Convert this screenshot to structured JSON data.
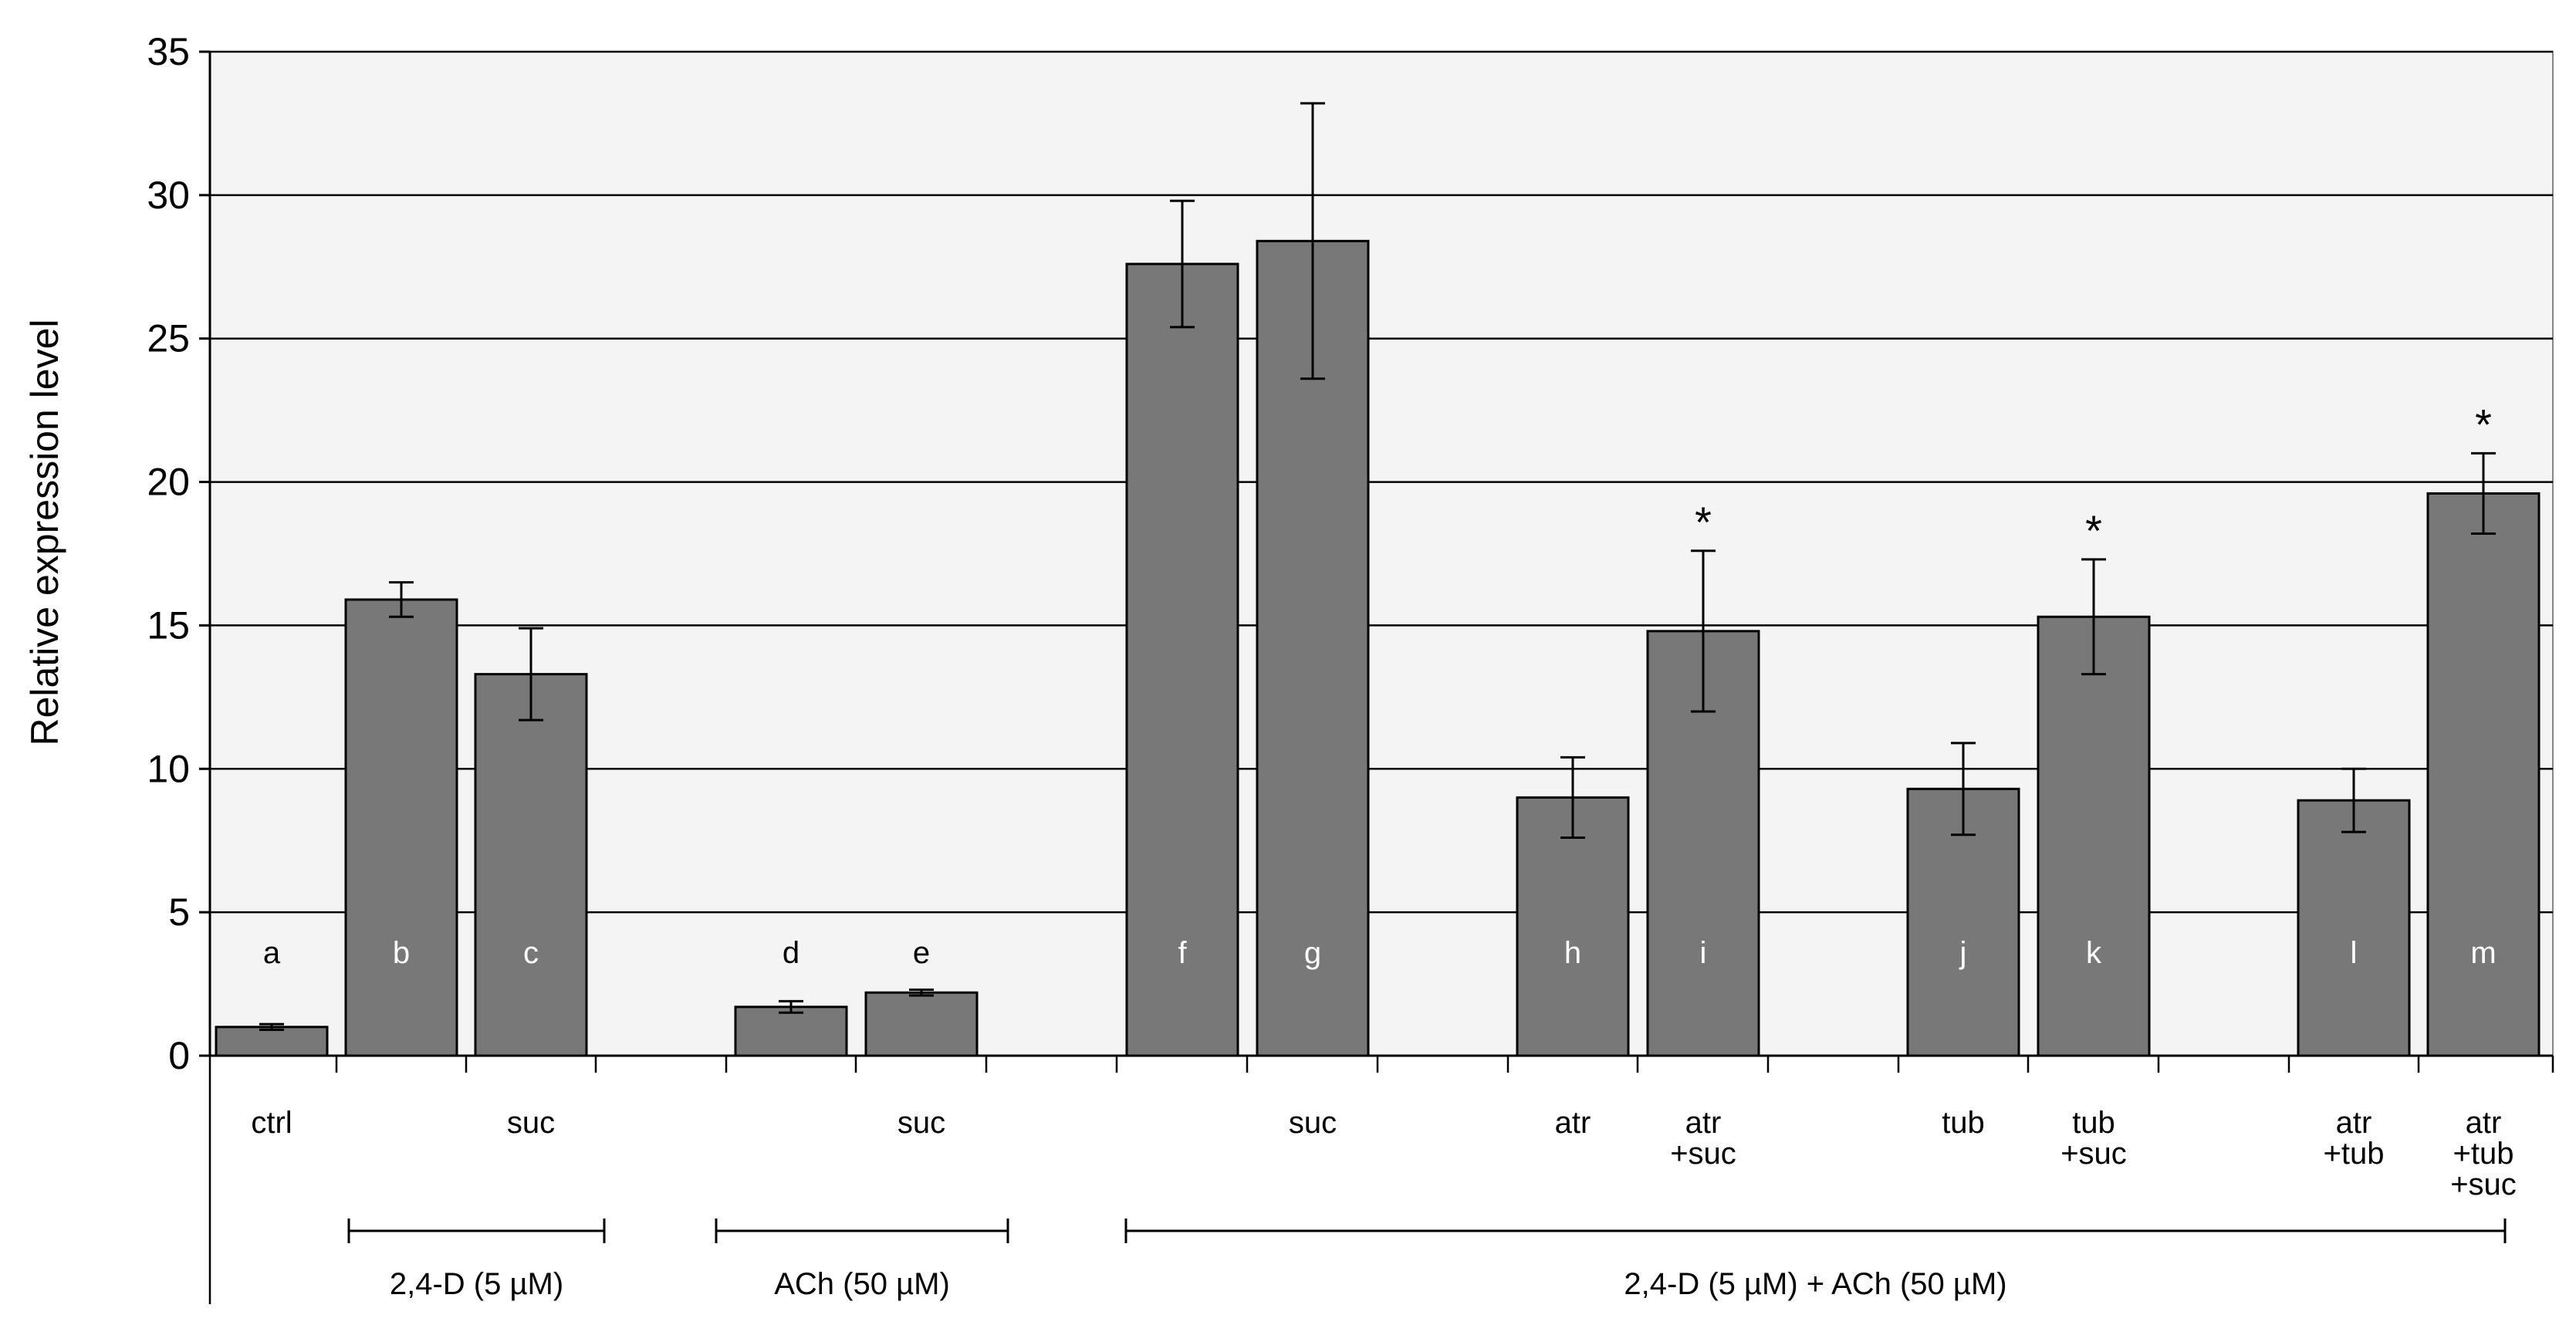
{
  "chart_data": {
    "type": "bar",
    "title": "",
    "xlabel": "",
    "ylabel": "Relative expression level",
    "ylim": [
      0,
      35
    ],
    "yticks": [
      0,
      5,
      10,
      15,
      20,
      25,
      30,
      35
    ],
    "grid": true,
    "legend": "none",
    "colors": {
      "bar": "#787878",
      "plot_bg": "#f4f4f4",
      "grid": "#000000"
    },
    "bars": [
      {
        "letter": "a",
        "value": 1.0,
        "err": 0.1,
        "cond": "ctrl",
        "star": false
      },
      {
        "letter": "b",
        "value": 15.9,
        "err": 0.6,
        "cond": "",
        "star": false
      },
      {
        "letter": "c",
        "value": 13.3,
        "err": 1.6,
        "cond": "suc",
        "star": false
      },
      {
        "letter": "d",
        "value": 1.7,
        "err": 0.2,
        "cond": "",
        "star": false
      },
      {
        "letter": "e",
        "value": 2.2,
        "err": 0.1,
        "cond": "suc",
        "star": false
      },
      {
        "letter": "f",
        "value": 27.6,
        "err": 2.2,
        "cond": "",
        "star": false
      },
      {
        "letter": "g",
        "value": 28.4,
        "err": 4.8,
        "cond": "suc",
        "star": false
      },
      {
        "letter": "h",
        "value": 9.0,
        "err": 1.4,
        "cond": "atr",
        "star": false
      },
      {
        "letter": "i",
        "value": 14.8,
        "err": 2.8,
        "cond": "atr\n+suc",
        "star": true
      },
      {
        "letter": "j",
        "value": 9.3,
        "err": 1.6,
        "cond": "tub",
        "star": false
      },
      {
        "letter": "k",
        "value": 15.3,
        "err": 2.0,
        "cond": "tub\n+suc",
        "star": true
      },
      {
        "letter": "l",
        "value": 8.9,
        "err": 1.1,
        "cond": "atr\n+tub",
        "star": false
      },
      {
        "letter": "m",
        "value": 19.6,
        "err": 1.4,
        "cond": "atr\n+tub\n+suc",
        "star": true
      }
    ],
    "groups": [
      {
        "label": "2,4-D (5 µM)",
        "from": 1,
        "to": 2
      },
      {
        "label": "ACh (50 µM)",
        "from": 3,
        "to": 4
      },
      {
        "label": "2,4-D (5 µM) + ACh (50 µM)",
        "from": 5,
        "to": 12
      }
    ],
    "star_symbol": "*"
  }
}
